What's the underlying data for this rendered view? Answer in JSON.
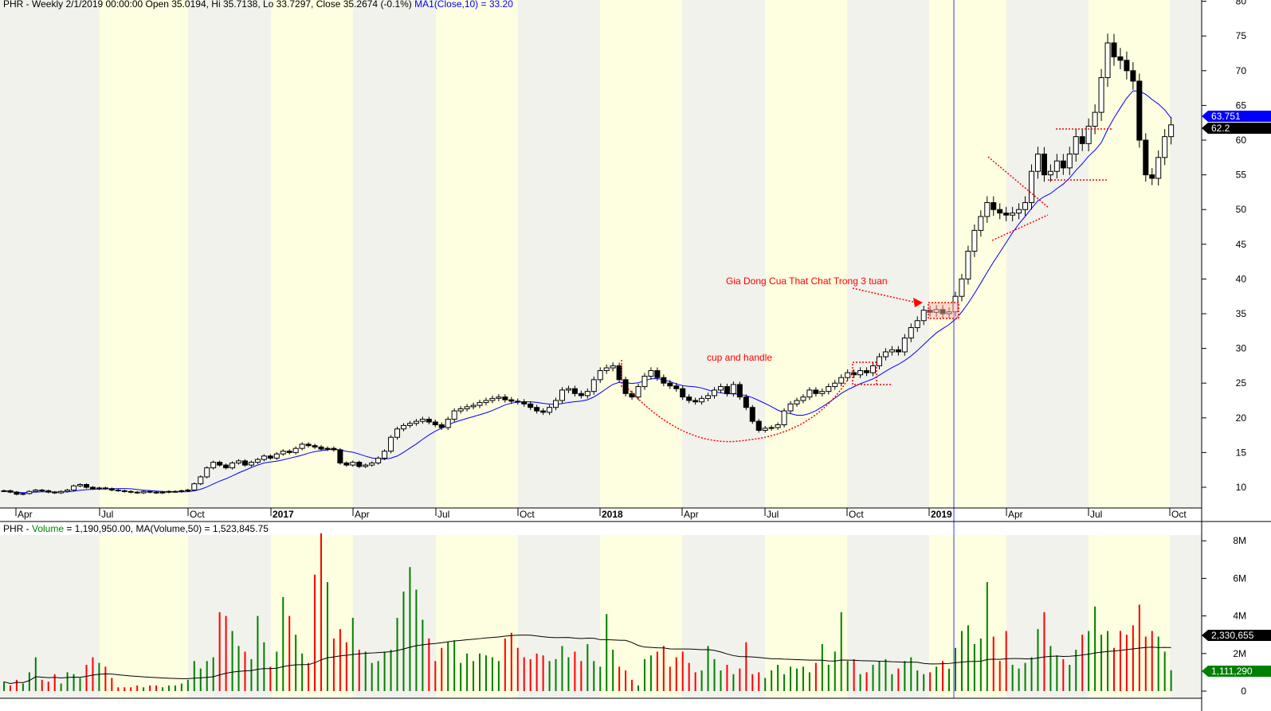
{
  "price_header": {
    "prefix": "PHR - Weekly 2/1/2019 00:00:00 Open 35.0194, Hi 35.7138, Lo 33.7297, Close 35.2674 (-0.1%)",
    "ma": "MA1(Close,10) = 33.20"
  },
  "volume_header": {
    "prefix": "PHR - ",
    "volume_word": "Volume",
    "rest": " = 1,190,950.00, MA(Volume,50) = 1,523,845.75"
  },
  "colors": {
    "up_volume": "#008000",
    "down_volume": "#ff0000",
    "ma_price": "#0000ff",
    "ma_volume": "#000000",
    "annotation": "#ff0000",
    "selected_line": "#9999ff",
    "band_gray": "#f2f2ec",
    "band_yellow": "#fefee0"
  },
  "annotations": {
    "cup": "cup and handle",
    "tight": "Gia Dong Cua That Chat Trong 3 tuan"
  },
  "chart_data": [
    {
      "type": "candlestick",
      "title": "PHR - Weekly",
      "x_tick_labels": [
        "Apr",
        "Jul",
        "Oct",
        "2017",
        "Apr",
        "Jul",
        "Oct",
        "2018",
        "Apr",
        "Jul",
        "Oct",
        "2019",
        "Apr",
        "Jul",
        "Oct"
      ],
      "y_ticks": [
        10,
        15,
        20,
        25,
        30,
        35,
        40,
        45,
        50,
        55,
        60,
        65,
        70,
        75,
        80
      ],
      "ylim": [
        5,
        80
      ],
      "selected_bar": "2/1/2019",
      "ma_period": 10,
      "last_labels": {
        "ma": "63.751",
        "close": "62.2"
      },
      "close": [
        9.5,
        9.3,
        9.0,
        9.1,
        9.4,
        9.6,
        9.5,
        9.3,
        9.2,
        9.4,
        9.6,
        10.2,
        10.4,
        10.0,
        9.8,
        9.9,
        9.8,
        9.6,
        9.5,
        9.4,
        9.3,
        9.2,
        9.4,
        9.3,
        9.2,
        9.3,
        9.4,
        9.4,
        9.5,
        9.6,
        10.5,
        11.5,
        12.8,
        13.6,
        13.2,
        12.8,
        13.5,
        13.8,
        13.2,
        13.6,
        14.0,
        14.5,
        14.2,
        14.8,
        15.2,
        15.0,
        15.6,
        16.2,
        16.0,
        15.8,
        15.5,
        15.6,
        15.4,
        13.5,
        13.2,
        13.6,
        13.0,
        13.2,
        13.5,
        14.2,
        15.2,
        17.2,
        18.4,
        18.9,
        19.2,
        19.5,
        19.8,
        19.4,
        19.0,
        18.6,
        19.8,
        21.0,
        21.3,
        21.6,
        21.8,
        22.2,
        22.5,
        22.8,
        23.0,
        22.6,
        22.4,
        22.3,
        22.0,
        21.5,
        21.0,
        20.8,
        21.5,
        22.5,
        24.0,
        24.2,
        23.5,
        23.2,
        23.8,
        25.5,
        26.8,
        27.2,
        27.5,
        25.5,
        23.5,
        23.0,
        24.5,
        26.0,
        26.8,
        25.8,
        25.0,
        24.6,
        24.2,
        23.0,
        22.5,
        22.3,
        22.8,
        23.2,
        24.0,
        24.5,
        23.5,
        24.8,
        23.0,
        21.5,
        19.5,
        18.2,
        18.5,
        18.6,
        19.0,
        21.0,
        22.0,
        22.5,
        23.0,
        24.0,
        23.5,
        23.8,
        24.5,
        25.0,
        25.8,
        26.5,
        26.2,
        26.8,
        26.5,
        27.5,
        28.8,
        29.5,
        29.8,
        29.5,
        31.5,
        33.0,
        34.0,
        35.5,
        35.2,
        35.6,
        35.0,
        35.27,
        37.5,
        40.0,
        44.0,
        47.0,
        49.0,
        51.0,
        50.0,
        49.5,
        49.2,
        49.5,
        50.0,
        51.0,
        55.5,
        58.0,
        55.0,
        55.5,
        57.0,
        56.0,
        58.0,
        60.5,
        59.5,
        62.0,
        64.0,
        69.0,
        74.0,
        72.0,
        71.5,
        70.0,
        68.5,
        60.0,
        55.0,
        54.5,
        57.5,
        60.5,
        62.2
      ]
    },
    {
      "type": "bar",
      "title": "PHR - Volume",
      "y_tick_labels": [
        "0",
        "2M",
        "4M",
        "6M",
        "8M"
      ],
      "ylim": [
        0,
        9000000
      ],
      "ma_period": 50,
      "last_labels": {
        "ma": "2,330,655",
        "volume": "1,111,290"
      },
      "volume_millions": [
        0.5,
        0.3,
        0.6,
        0.4,
        1.0,
        1.8,
        0.6,
        0.5,
        0.9,
        0.4,
        1.0,
        0.9,
        0.7,
        1.4,
        1.8,
        1.5,
        1.3,
        0.7,
        0.2,
        0.2,
        0.2,
        0.3,
        0.2,
        0.3,
        0.3,
        0.2,
        0.3,
        0.3,
        0.4,
        0.6,
        1.6,
        1.2,
        1.6,
        1.8,
        4.2,
        4.0,
        3.2,
        2.4,
        2.1,
        1.7,
        4.0,
        2.6,
        1.3,
        2.1,
        5.0,
        4.0,
        3.0,
        2.0,
        1.5,
        6.2,
        8.4,
        5.8,
        2.8,
        3.3,
        2.6,
        3.9,
        2.2,
        2.1,
        1.5,
        1.6,
        2.1,
        2.2,
        3.9,
        5.3,
        6.6,
        5.4,
        3.8,
        2.8,
        1.6,
        2.3,
        2.6,
        2.7,
        1.5,
        2.0,
        1.6,
        2.0,
        1.9,
        1.8,
        1.6,
        2.8,
        3.1,
        2.3,
        1.8,
        1.7,
        2.0,
        1.9,
        1.6,
        1.7,
        2.4,
        1.8,
        2.1,
        1.6,
        2.5,
        1.6,
        1.3,
        4.1,
        2.2,
        1.3,
        1.1,
        0.6,
        0.3,
        1.7,
        1.9,
        2.1,
        2.4,
        1.3,
        1.8,
        2.1,
        1.5,
        1.0,
        1.1,
        2.4,
        1.7,
        1.1,
        1.4,
        0.9,
        1.2,
        2.6,
        0.9,
        1.0,
        0.7,
        1.1,
        1.4,
        0.9,
        1.3,
        1.2,
        1.3,
        1.0,
        1.5,
        2.5,
        1.4,
        2.1,
        4.2,
        1.6,
        1.7,
        0.9,
        1.0,
        1.4,
        1.6,
        1.7,
        0.9,
        1.2,
        1.6,
        1.8,
        1.1,
        0.9,
        1.0,
        1.3,
        1.6,
        1.19,
        2.3,
        3.2,
        3.5,
        2.5,
        2.8,
        5.8,
        2.9,
        1.6,
        3.2,
        1.4,
        1.2,
        1.5,
        1.8,
        3.3,
        4.2,
        2.4,
        1.9,
        1.7,
        1.4,
        2.2,
        3.0,
        3.2,
        4.5,
        3.0,
        3.2,
        2.3,
        3.2,
        3.0,
        3.5,
        4.6,
        2.9,
        3.2,
        2.9,
        2.1,
        1.11
      ]
    }
  ]
}
